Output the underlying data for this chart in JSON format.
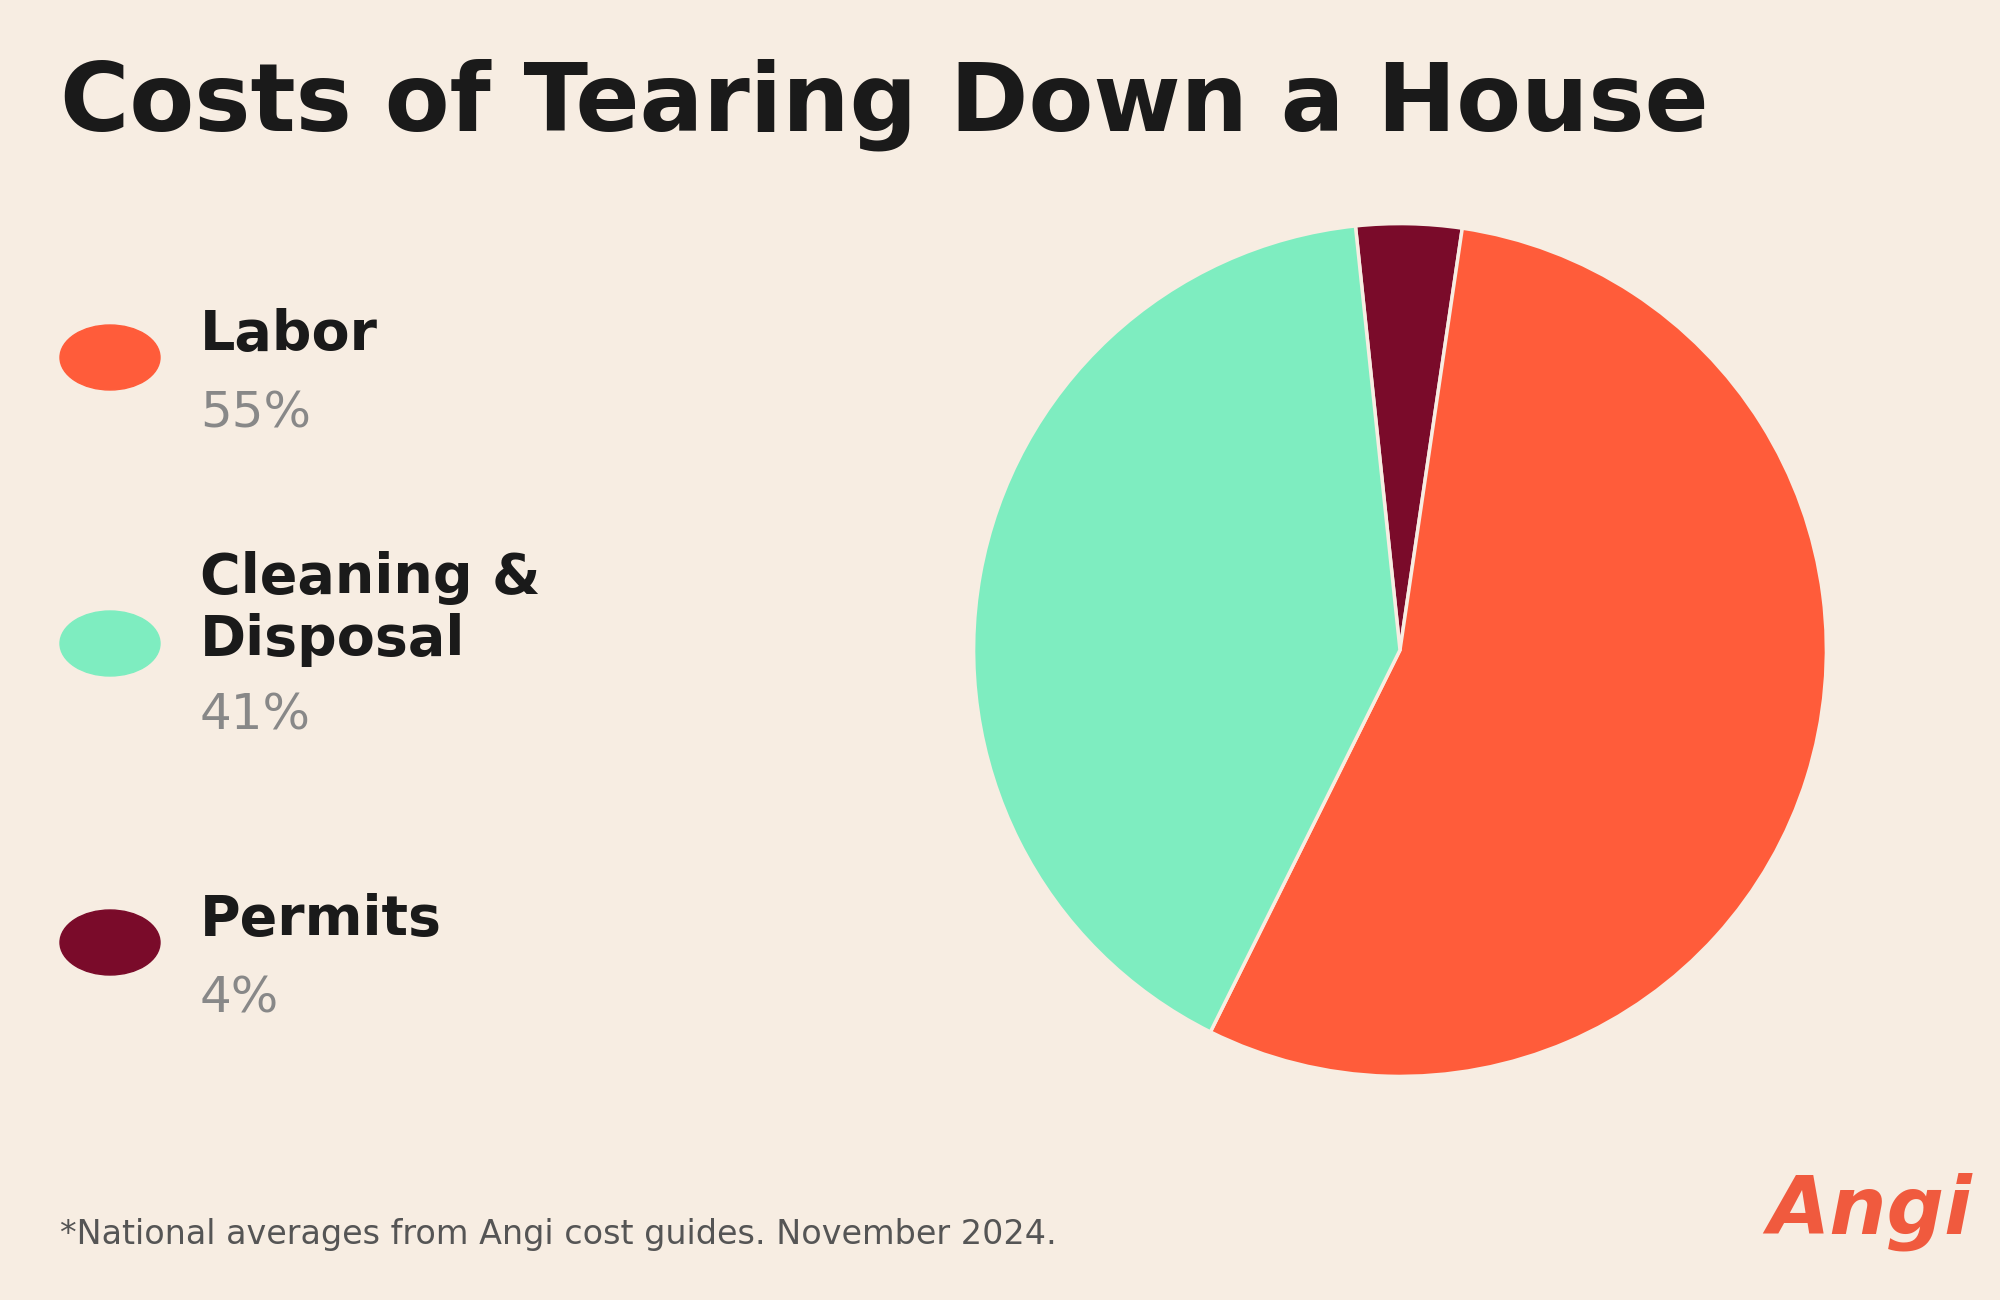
{
  "title": "Costs of Tearing Down a House",
  "background_color": "#f7ede2",
  "pie_sizes": [
    4,
    55,
    41
  ],
  "pie_colors": [
    "#7a0b2a",
    "#ff5c3a",
    "#7eedc0"
  ],
  "labels": [
    "Labor",
    "Cleaning &\nDisposal",
    "Permits"
  ],
  "percentages": [
    "55%",
    "41%",
    "4%"
  ],
  "legend_colors": [
    "#ff5c3a",
    "#7eedc0",
    "#7a0b2a"
  ],
  "startangle": 96,
  "footnote": "*National averages from Angi cost guides. November 2024.",
  "angi_text": "Angi",
  "angi_color": "#f05a3e",
  "title_fontsize": 68,
  "legend_label_fontsize": 40,
  "legend_pct_fontsize": 36,
  "footnote_fontsize": 24,
  "angi_fontsize": 58,
  "title_color": "#1a1a1a",
  "label_color": "#1a1a1a",
  "pct_color": "#888888",
  "footnote_color": "#555555"
}
